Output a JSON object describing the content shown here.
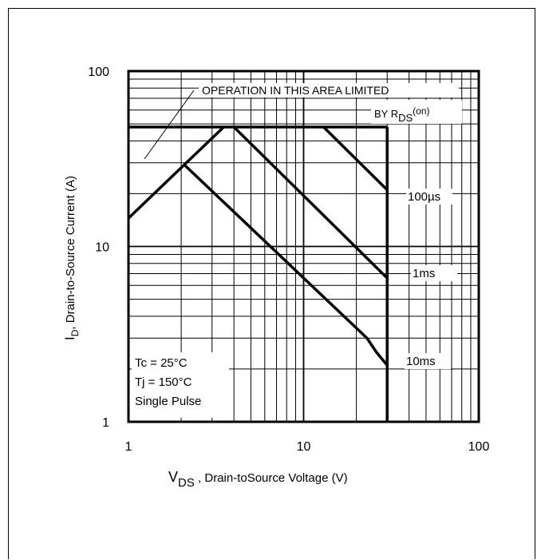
{
  "chart_data": {
    "type": "line",
    "x_scale": "log",
    "y_scale": "log",
    "xlim": [
      1,
      100
    ],
    "ylim": [
      1,
      100
    ],
    "grid": true,
    "x_ticks": [
      "1",
      "10",
      "100"
    ],
    "y_ticks": [
      "1",
      "10",
      "100"
    ],
    "xlabel": {
      "main": "V",
      "sub": "DS",
      "rest": " , Drain-toSource Voltage (V)"
    },
    "ylabel": {
      "main": "I",
      "sub": "D",
      "rest": ",  Drain-to-Source Current (A)"
    },
    "annotations": {
      "area_line1": "OPERATION IN THIS AREA LIMITED",
      "area_line2_prefix": "BY R",
      "area_line2_sub": "DS",
      "area_line2_sup": "(on)",
      "conditions": [
        "Tc = 25°C",
        "Tj = 150°C",
        "Single Pulse"
      ]
    },
    "series": [
      {
        "name": "100µs",
        "points": [
          [
            1,
            48
          ],
          [
            13,
            48
          ],
          [
            30,
            21
          ]
        ]
      },
      {
        "name": "1ms",
        "points": [
          [
            1,
            48
          ],
          [
            4,
            48
          ],
          [
            30,
            6.6
          ]
        ]
      },
      {
        "name": "10ms",
        "points": [
          [
            1,
            14.5
          ],
          [
            3.5,
            48
          ],
          [
            4,
            48
          ],
          [
            2.1,
            29
          ],
          [
            23,
            3
          ],
          [
            26,
            2.5
          ],
          [
            30,
            2.1
          ]
        ]
      }
    ],
    "id_limit": 48,
    "vds_limit": 30
  }
}
